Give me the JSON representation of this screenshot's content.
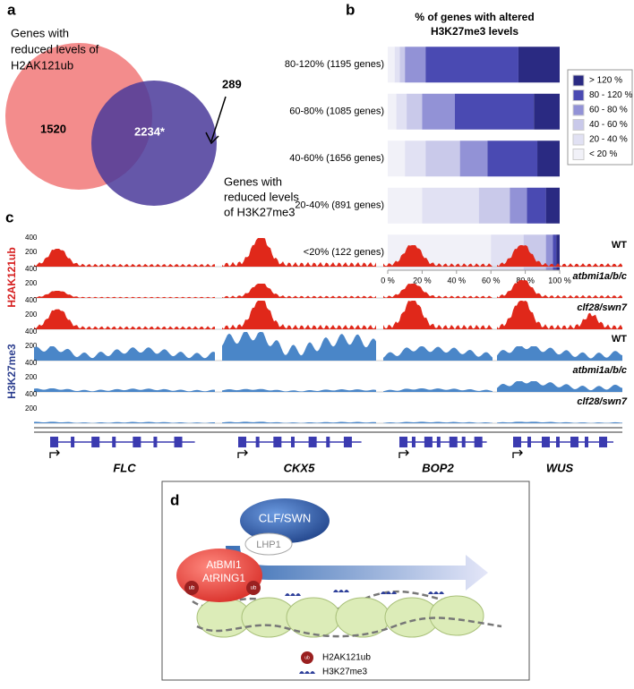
{
  "panel_a": {
    "label": "a",
    "set1_label": [
      "Genes with",
      "reduced levels of",
      "H2AK121ub"
    ],
    "set2_label": [
      "Genes with",
      "reduced levels",
      "of H3K27me3"
    ],
    "only_set1": 1520,
    "both": "2234*",
    "only_set2": 289
  },
  "chart_data": {
    "type": "stacked-barh",
    "panel_label": "b",
    "title": [
      "% of genes with altered",
      "H3K27me3 levels"
    ],
    "categories": [
      "80-120% (1195 genes)",
      "60-80% (1085 genes)",
      "40-60% (1656 genes)",
      "20-40% (891 genes)",
      "<20% (122 genes)"
    ],
    "series": [
      {
        "name": "< 20 %",
        "color": "#f1f1f8",
        "values": [
          4,
          5,
          10,
          20,
          60
        ]
      },
      {
        "name": "20 - 40 %",
        "color": "#e1e1f3",
        "values": [
          3,
          6,
          12,
          33,
          19
        ]
      },
      {
        "name": "40 - 60 %",
        "color": "#c9c9ea",
        "values": [
          3,
          9,
          20,
          18,
          13
        ]
      },
      {
        "name": "60 - 80 %",
        "color": "#9292d6",
        "values": [
          12,
          19,
          16,
          10,
          4
        ]
      },
      {
        "name": "80 - 120 %",
        "color": "#4a4ab2",
        "values": [
          54,
          46,
          29,
          11,
          2
        ]
      },
      {
        "name": "> 120 %",
        "color": "#2a2a82",
        "values": [
          24,
          15,
          13,
          8,
          2
        ]
      }
    ],
    "xlim": [
      0,
      100
    ],
    "xticks": [
      {
        "value": 0,
        "label": "0 %"
      },
      {
        "value": 20,
        "label": "20 %"
      },
      {
        "value": 40,
        "label": "40 %"
      },
      {
        "value": 60,
        "label": "60 %"
      },
      {
        "value": 80,
        "label": "80 %"
      },
      {
        "value": 100,
        "label": "100 %"
      }
    ]
  },
  "panel_c": {
    "label": "c",
    "marks": [
      "H2AK121ub",
      "H3K27me3"
    ],
    "track_labels": [
      "WT",
      "atbmi1a/b/c",
      "clf28/swn7",
      "WT",
      "atbmi1a/b/c",
      "clf28/swn7"
    ],
    "ylim": [
      0,
      400
    ],
    "yticks": [
      200,
      400
    ],
    "genes": [
      "FLC",
      "CKX5",
      "BOP2",
      "WUS"
    ],
    "peaks": [
      [
        250,
        400,
        300,
        300
      ],
      [
        100,
        200,
        200,
        250
      ],
      [
        280,
        400,
        400,
        400
      ],
      [
        200,
        400,
        200,
        200
      ],
      [
        50,
        40,
        50,
        150
      ],
      [
        20,
        20,
        20,
        20
      ]
    ]
  },
  "panel_d": {
    "label": "d",
    "writer": "CLF/SWN",
    "reader": "LHP1",
    "prc1": [
      "AtBMI1",
      "AtRING1"
    ],
    "ub": "ub",
    "legend": [
      "H2AK121ub",
      "H3K27me3"
    ]
  }
}
